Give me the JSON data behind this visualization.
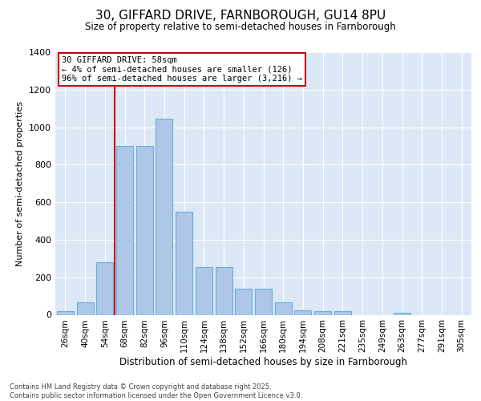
{
  "title": "30, GIFFARD DRIVE, FARNBOROUGH, GU14 8PU",
  "subtitle": "Size of property relative to semi-detached houses in Farnborough",
  "xlabel": "Distribution of semi-detached houses by size in Farnborough",
  "ylabel": "Number of semi-detached properties",
  "categories": [
    "26sqm",
    "40sqm",
    "54sqm",
    "68sqm",
    "82sqm",
    "96sqm",
    "110sqm",
    "124sqm",
    "138sqm",
    "152sqm",
    "166sqm",
    "180sqm",
    "194sqm",
    "208sqm",
    "221sqm",
    "235sqm",
    "249sqm",
    "263sqm",
    "277sqm",
    "291sqm",
    "305sqm"
  ],
  "values": [
    20,
    65,
    280,
    900,
    900,
    1045,
    550,
    255,
    255,
    140,
    140,
    65,
    25,
    20,
    20,
    0,
    0,
    10,
    0,
    0,
    0
  ],
  "bar_color": "#aec6e8",
  "bar_edge_color": "#6aaed6",
  "vline_pos": 2.5,
  "vline_color": "#cc0000",
  "annotation_title": "30 GIFFARD DRIVE: 58sqm",
  "annotation_line1": "← 4% of semi-detached houses are smaller (126)",
  "annotation_line2": "96% of semi-detached houses are larger (3,216) →",
  "annotation_box_edgecolor": "#cc0000",
  "ylim": [
    0,
    1400
  ],
  "yticks": [
    0,
    200,
    400,
    600,
    800,
    1000,
    1200,
    1400
  ],
  "bg_color": "#dce8f5",
  "grid_color": "#ffffff",
  "footer_line1": "Contains HM Land Registry data © Crown copyright and database right 2025.",
  "footer_line2": "Contains public sector information licensed under the Open Government Licence v3.0."
}
